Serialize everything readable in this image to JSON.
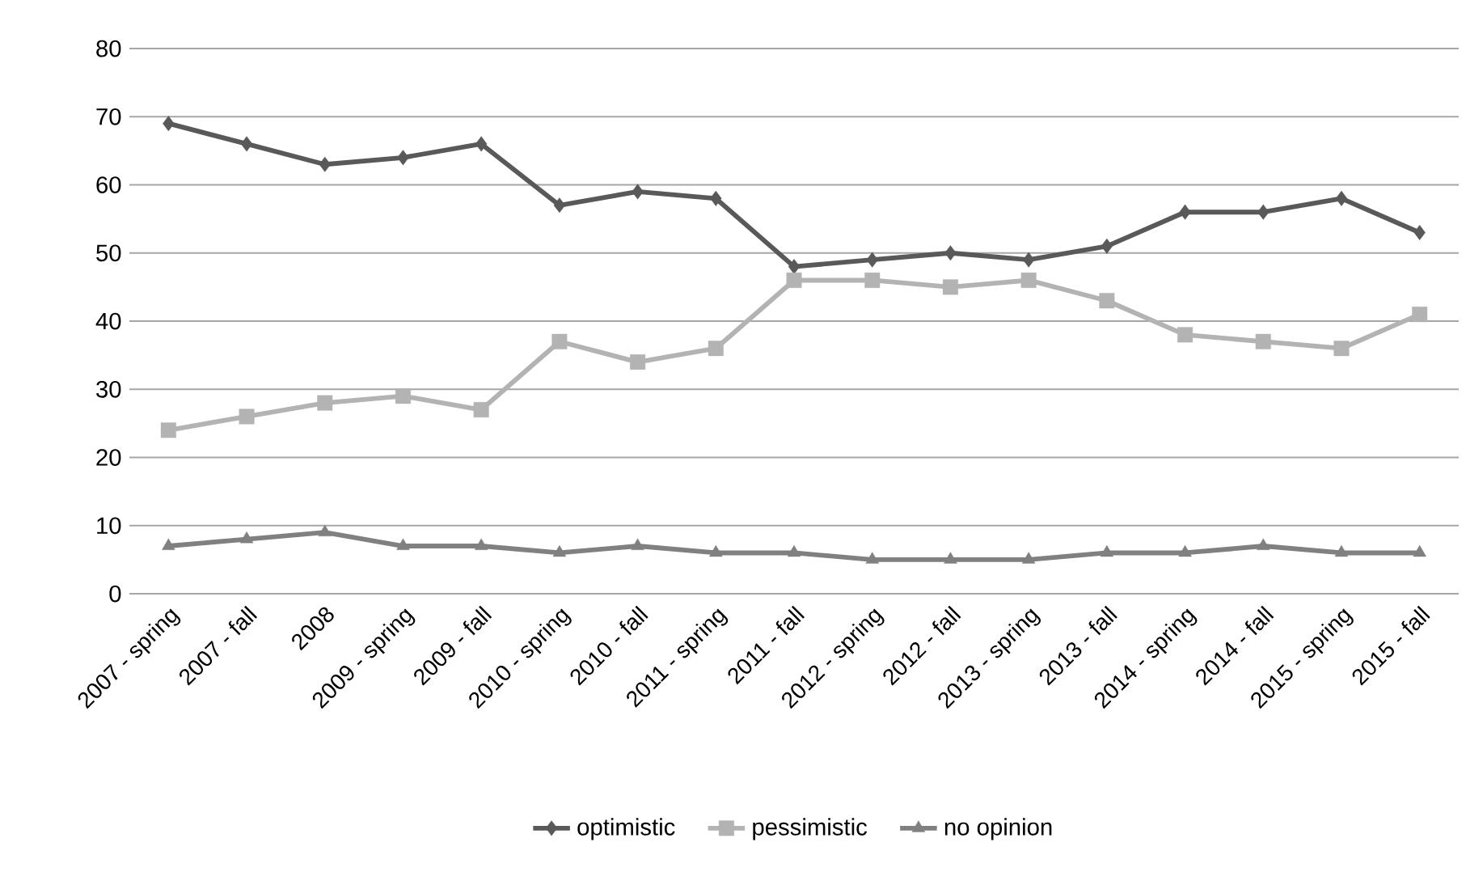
{
  "chart_data": {
    "type": "line",
    "categories": [
      "2007 - spring",
      "2007 - fall",
      "2008",
      "2009 - spring",
      "2009 - fall",
      "2010 - spring",
      "2010 - fall",
      "2011 - spring",
      "2011 - fall",
      "2012 - spring",
      "2012 - fall",
      "2013 - spring",
      "2013 - fall",
      "2014 - spring",
      "2014 - fall",
      "2015 - spring",
      "2015 - fall"
    ],
    "series": [
      {
        "name": "optimistic",
        "color": "#595959",
        "marker": "diamond",
        "values": [
          69,
          66,
          63,
          64,
          66,
          57,
          59,
          58,
          48,
          49,
          50,
          49,
          51,
          56,
          56,
          58,
          53
        ]
      },
      {
        "name": "pessimistic",
        "color": "#b3b3b3",
        "marker": "square",
        "values": [
          24,
          26,
          28,
          29,
          27,
          37,
          34,
          36,
          46,
          46,
          45,
          46,
          43,
          38,
          37,
          36,
          41
        ]
      },
      {
        "name": "no opinion",
        "color": "#808080",
        "marker": "triangle",
        "values": [
          7,
          8,
          9,
          7,
          7,
          6,
          7,
          6,
          6,
          5,
          5,
          5,
          6,
          6,
          7,
          6,
          6
        ]
      }
    ],
    "ylim": [
      0,
      80
    ],
    "yticks": [
      0,
      10,
      20,
      30,
      40,
      50,
      60,
      70,
      80
    ],
    "grid": "y",
    "legend": "bottom",
    "line_style": "solid"
  }
}
